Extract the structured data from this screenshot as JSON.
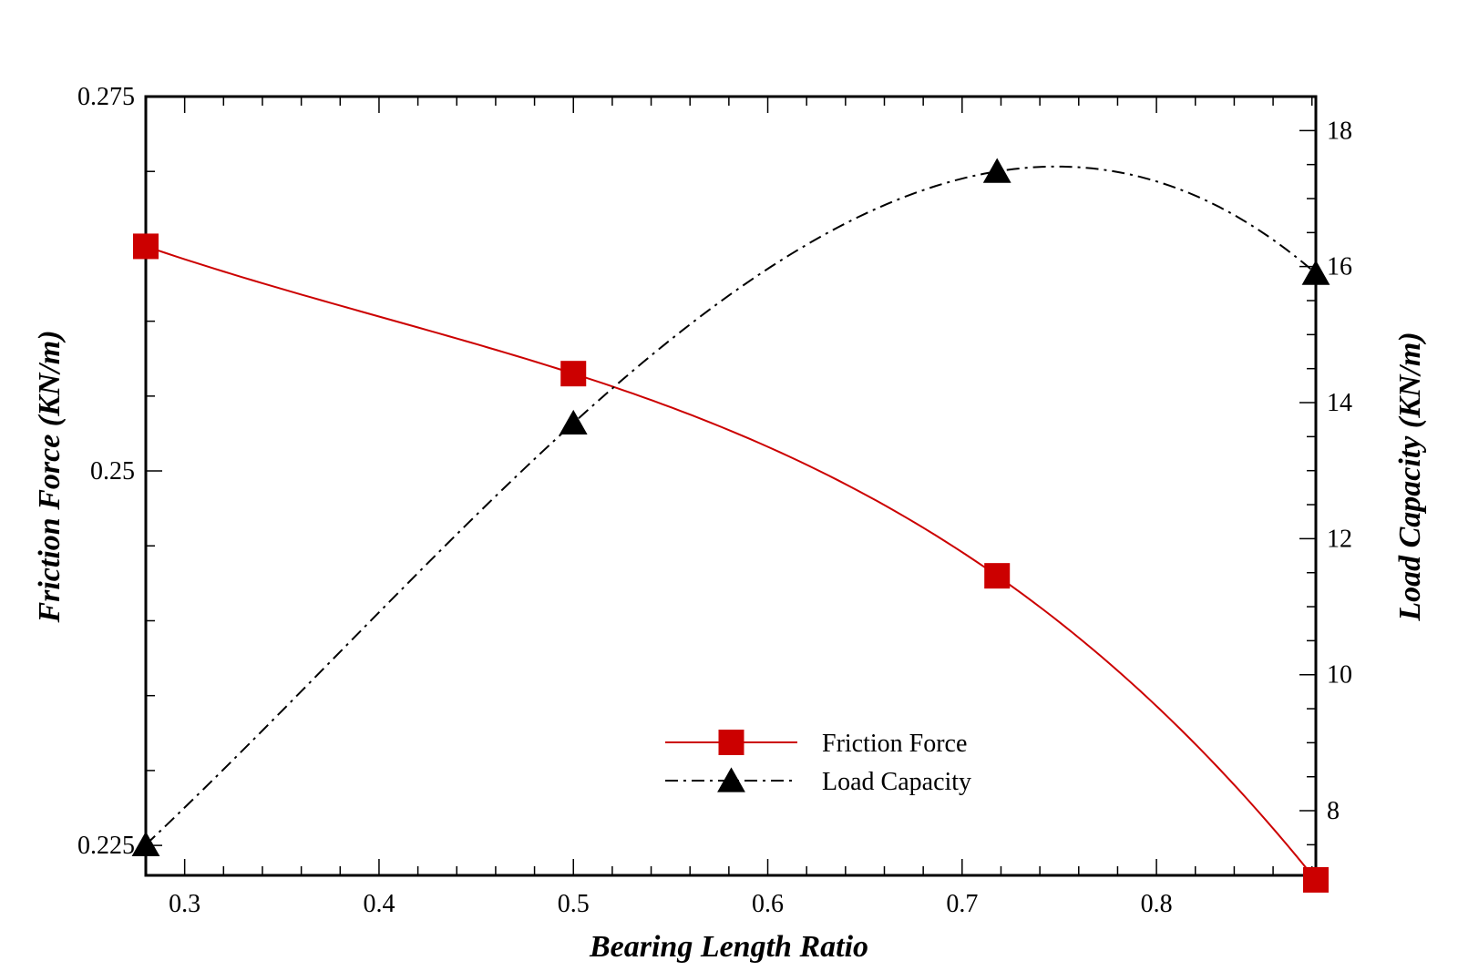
{
  "chart_data": {
    "type": "line",
    "title": "",
    "xlabel": "Bearing Length Ratio",
    "ylabel_left": "Friction Force (KN/m)",
    "ylabel_right": "Load Capacity (KN/m)",
    "xlim": [
      0.28,
      0.882
    ],
    "ylim_left": [
      0.223,
      0.275
    ],
    "ylim_right": [
      7.05,
      18.5
    ],
    "x_ticks": [
      "0.3",
      "0.4",
      "0.5",
      "0.6",
      "0.7",
      "0.8"
    ],
    "y_left_ticks": [
      "0.225",
      "0.25",
      "0.275"
    ],
    "y_right_ticks": [
      "8",
      "10",
      "12",
      "14",
      "16",
      "18"
    ],
    "grid": false,
    "legend_position": "lower-center",
    "series": [
      {
        "name": "Friction Force",
        "axis": "left",
        "color": "#cc0000",
        "line_style": "solid",
        "marker": "square",
        "x": [
          0.28,
          0.5,
          0.718,
          0.882
        ],
        "values": [
          0.265,
          0.2565,
          0.243,
          0.2227
        ]
      },
      {
        "name": "Load Capacity",
        "axis": "right",
        "color": "#000000",
        "line_style": "dash-dot",
        "marker": "triangle",
        "x": [
          0.28,
          0.5,
          0.718,
          0.882
        ],
        "values": [
          7.5,
          13.7,
          17.4,
          15.9
        ]
      }
    ]
  }
}
